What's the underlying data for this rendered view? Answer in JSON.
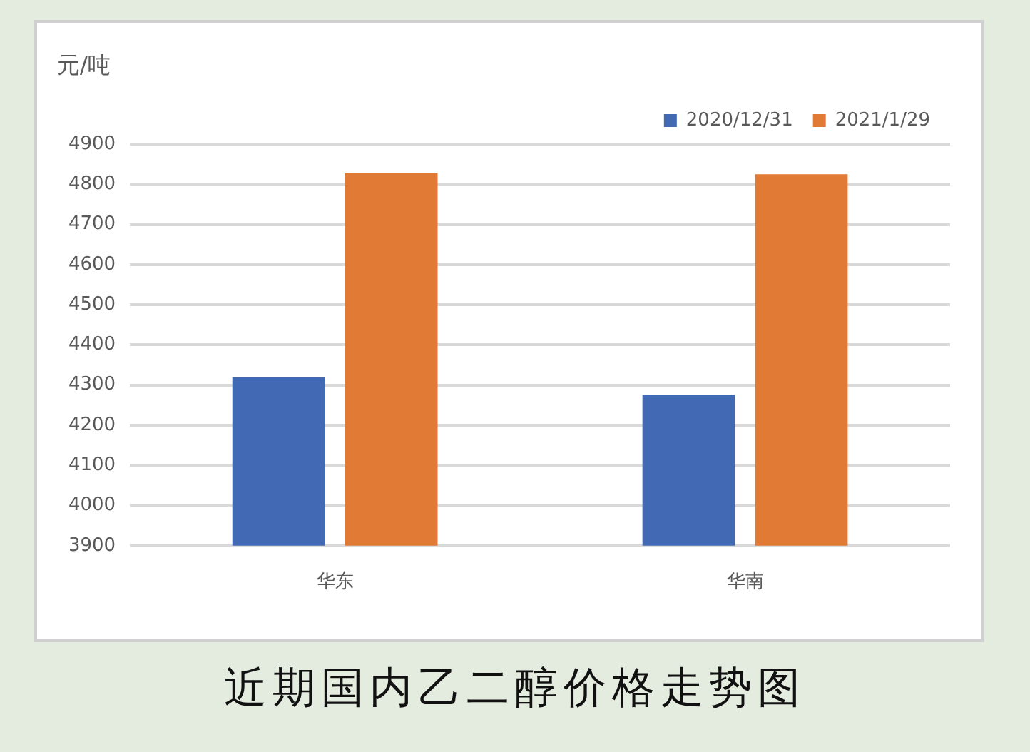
{
  "chart_data": {
    "type": "bar",
    "title": "近期国内乙二醇价格走势图",
    "ylabel": "元/吨",
    "categories": [
      "华东",
      "华南"
    ],
    "series": [
      {
        "name": "2020/12/31",
        "color": "#4169b4",
        "values": [
          4320,
          4276
        ]
      },
      {
        "name": "2021/1/29",
        "color": "#e07a35",
        "values": [
          4828,
          4825
        ]
      }
    ],
    "ylim": [
      3900,
      4900
    ],
    "yticks": [
      3900,
      4000,
      4100,
      4200,
      4300,
      4400,
      4500,
      4600,
      4700,
      4800,
      4900
    ],
    "grid": "y",
    "legend": "top right"
  }
}
